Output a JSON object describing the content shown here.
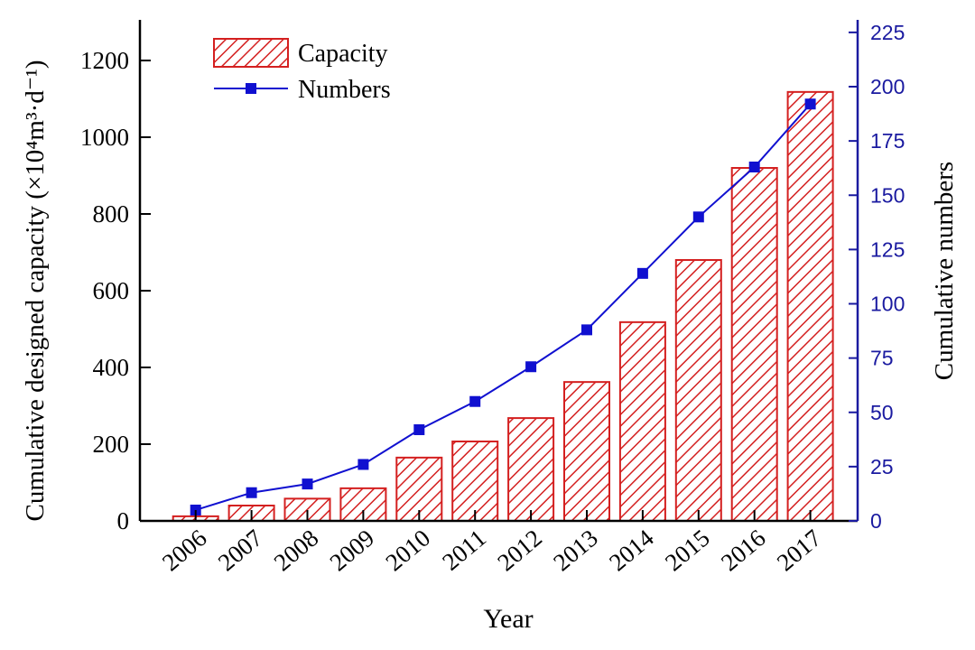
{
  "chart_data": {
    "type": "bar+line",
    "categories": [
      "2006",
      "2007",
      "2008",
      "2009",
      "2010",
      "2011",
      "2012",
      "2013",
      "2014",
      "2015",
      "2016",
      "2017"
    ],
    "series": [
      {
        "name": "Capacity",
        "type": "bar",
        "axis": "left",
        "color": "#d42020",
        "pattern": "diagonal-hatch",
        "values": [
          12,
          40,
          58,
          85,
          165,
          207,
          268,
          362,
          518,
          680,
          920,
          1118
        ]
      },
      {
        "name": "Numbers",
        "type": "line",
        "axis": "right",
        "color": "#1010d0",
        "marker": "square",
        "values": [
          5,
          13,
          17,
          26,
          42,
          55,
          71,
          88,
          114,
          140,
          163,
          192
        ]
      }
    ],
    "xlabel": "Year",
    "ylabel_left": "Cumulative designed capacity (×10⁴m³·d⁻¹)",
    "ylabel_right": "Cumulative numbers",
    "ylim_left": [
      0,
      1300
    ],
    "yticks_left": [
      0,
      200,
      400,
      600,
      800,
      1000,
      1200
    ],
    "ylim_right": [
      0,
      228
    ],
    "yticks_right": [
      0,
      25,
      50,
      75,
      100,
      125,
      150,
      175,
      200,
      225
    ],
    "right_axis_color": "#1a1aa0",
    "grid": false,
    "legend_position": "top-left"
  }
}
